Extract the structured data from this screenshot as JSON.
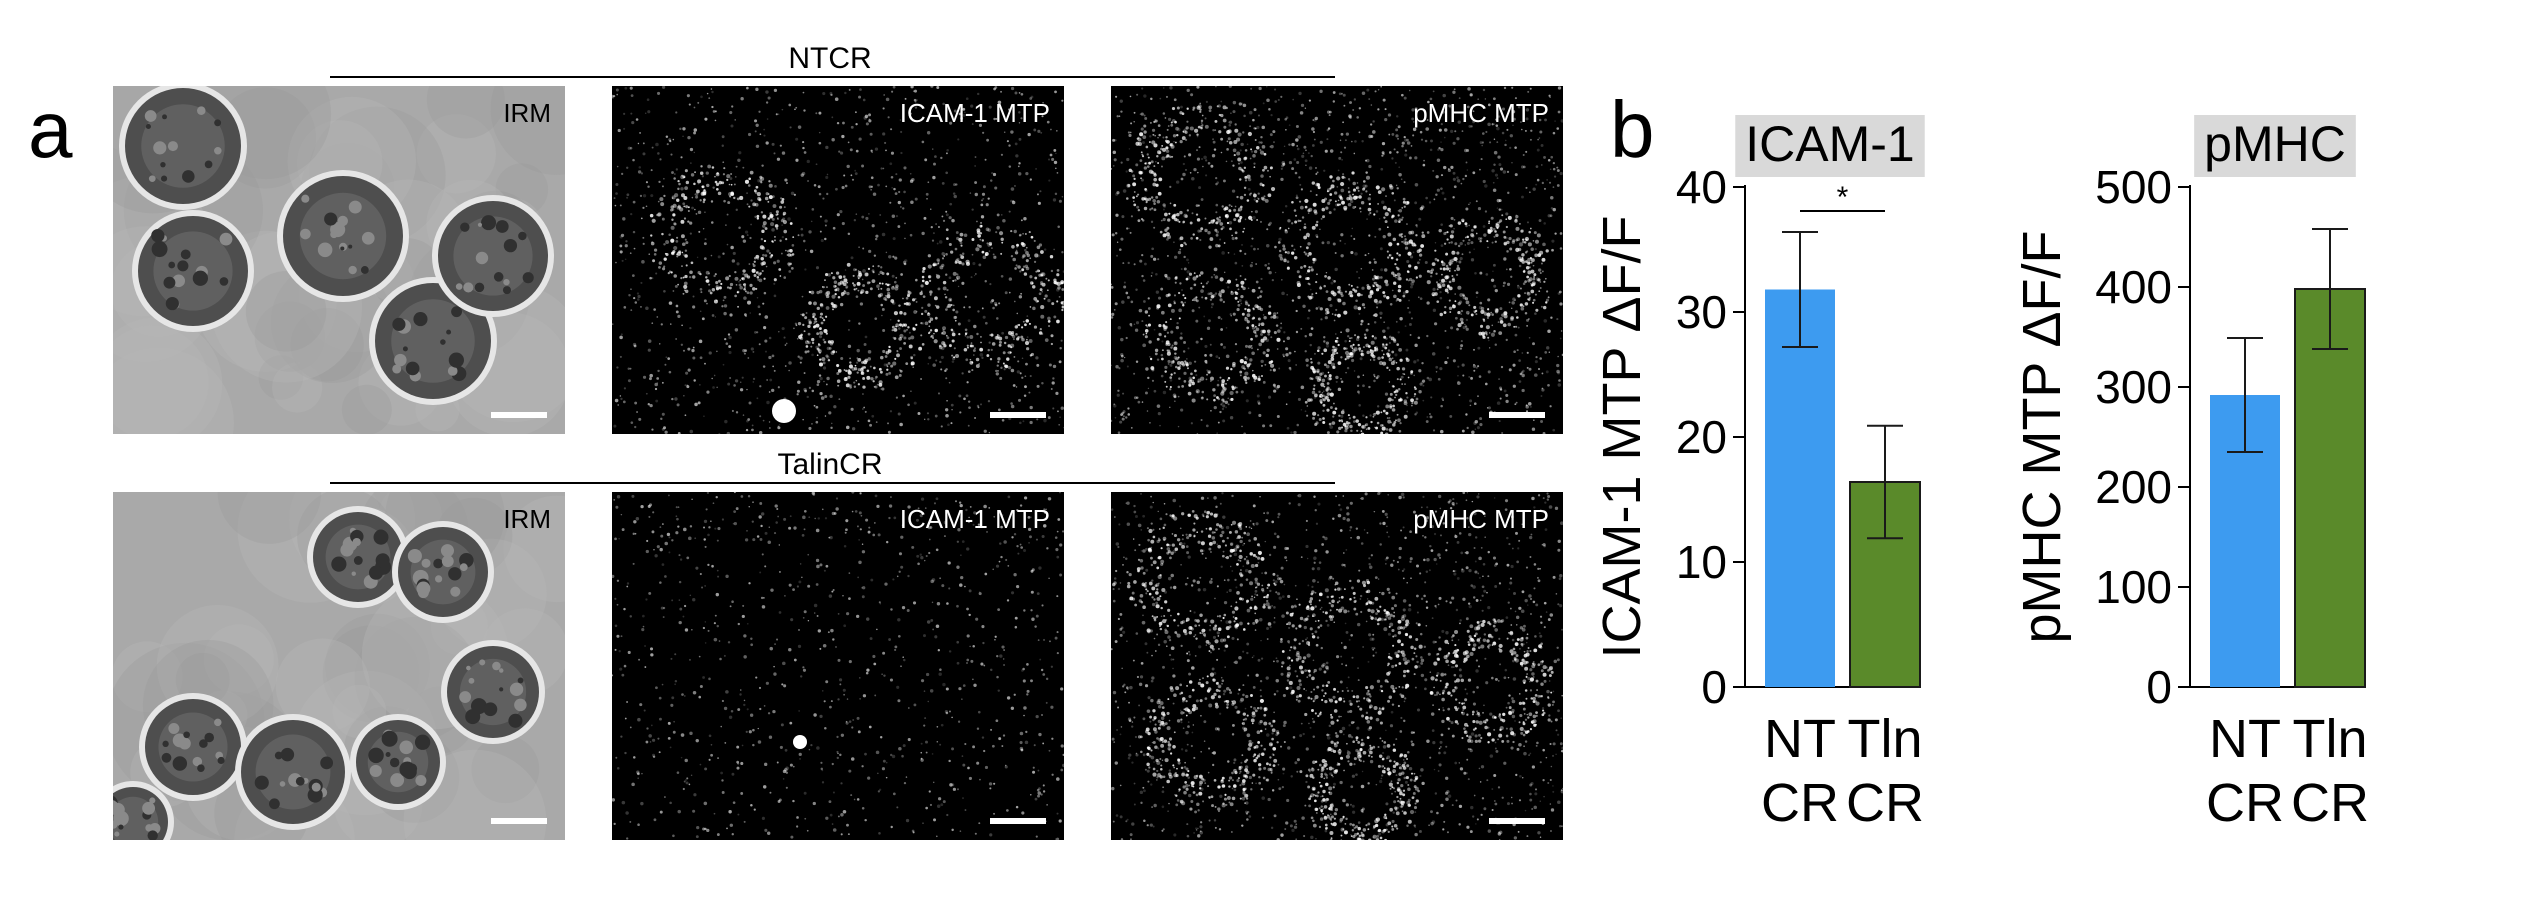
{
  "panel_a": {
    "letter": "a",
    "groups": [
      {
        "label": "NTCR",
        "images": [
          {
            "label": "IRM",
            "kind": "irm"
          },
          {
            "label": "ICAM-1 MTP",
            "kind": "fluor"
          },
          {
            "label": "pMHC MTP",
            "kind": "fluor"
          }
        ]
      },
      {
        "label": "TalinCR",
        "images": [
          {
            "label": "IRM",
            "kind": "irm"
          },
          {
            "label": "ICAM-1 MTP",
            "kind": "fluor"
          },
          {
            "label": "pMHC MTP",
            "kind": "fluor"
          }
        ]
      }
    ]
  },
  "panel_b": {
    "letter": "b"
  },
  "colors": {
    "nt_bar": "#3d9bf0",
    "tln_bar": "#5a8a2a",
    "title_bg": "#d9d9d9"
  },
  "chart_data": [
    {
      "type": "bar",
      "title": "ICAM-1",
      "ylabel": "ICAM-1 MTP ΔF/F",
      "categories": [
        "NT\nCR",
        "Tln\nCR"
      ],
      "values": [
        31.8,
        16.4
      ],
      "errors": [
        4.6,
        4.5
      ],
      "ylim": [
        0,
        40
      ],
      "yticks": [
        0,
        10,
        20,
        30,
        40
      ],
      "significance": {
        "between": [
          0,
          1
        ],
        "label": "*"
      }
    },
    {
      "type": "bar",
      "title": "pMHC",
      "ylabel": "pMHC MTP ΔF/F",
      "categories": [
        "NT\nCR",
        "Tln\nCR"
      ],
      "values": [
        292,
        398
      ],
      "errors": [
        57,
        60
      ],
      "ylim": [
        0,
        500
      ],
      "yticks": [
        0,
        100,
        200,
        300,
        400,
        500
      ]
    }
  ]
}
